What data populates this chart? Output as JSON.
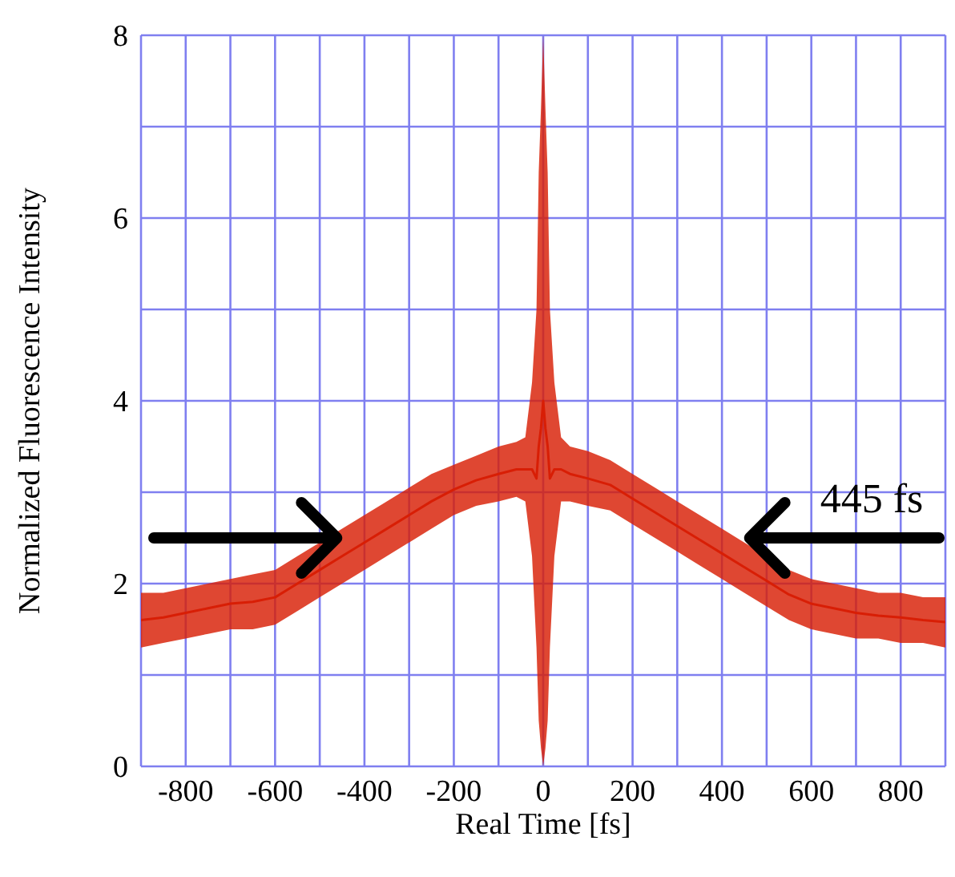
{
  "chart_data": {
    "type": "line",
    "xlabel": "Real Time [fs]",
    "ylabel": "Normalized Fluorescence Intensity",
    "x": [
      -900,
      -850,
      -800,
      -750,
      -700,
      -650,
      -600,
      -550,
      -500,
      -450,
      -400,
      -350,
      -300,
      -250,
      -200,
      -150,
      -100,
      -60,
      -40,
      -25,
      -15,
      -10,
      -5,
      0,
      5,
      10,
      15,
      25,
      40,
      60,
      100,
      150,
      200,
      250,
      300,
      350,
      400,
      450,
      500,
      550,
      600,
      650,
      700,
      750,
      800,
      850,
      900
    ],
    "series": [
      {
        "color": "#d81e05",
        "values": [
          1.6,
          1.63,
          1.68,
          1.73,
          1.78,
          1.8,
          1.85,
          2.0,
          2.15,
          2.3,
          2.45,
          2.6,
          2.75,
          2.9,
          3.03,
          3.13,
          3.2,
          3.25,
          3.25,
          3.25,
          3.15,
          3.5,
          3.7,
          4,
          3.7,
          3.5,
          3.15,
          3.25,
          3.25,
          3.2,
          3.15,
          3.08,
          2.93,
          2.78,
          2.63,
          2.48,
          2.33,
          2.18,
          2.03,
          1.88,
          1.78,
          1.73,
          1.68,
          1.65,
          1.63,
          1.6,
          1.58
        ],
        "lower": [
          1.3,
          1.35,
          1.4,
          1.45,
          1.5,
          1.5,
          1.55,
          1.7,
          1.85,
          2.0,
          2.15,
          2.3,
          2.45,
          2.6,
          2.75,
          2.85,
          2.9,
          2.95,
          2.9,
          2.3,
          1.3,
          0.5,
          0.2,
          0,
          0.2,
          0.5,
          1.3,
          2.3,
          2.9,
          2.9,
          2.85,
          2.8,
          2.65,
          2.5,
          2.35,
          2.2,
          2.05,
          1.9,
          1.75,
          1.6,
          1.5,
          1.45,
          1.4,
          1.4,
          1.35,
          1.35,
          1.3
        ],
        "upper": [
          1.9,
          1.9,
          1.95,
          2.0,
          2.05,
          2.1,
          2.15,
          2.3,
          2.45,
          2.6,
          2.75,
          2.9,
          3.05,
          3.2,
          3.3,
          3.4,
          3.5,
          3.55,
          3.6,
          4.2,
          5.0,
          6.5,
          7.2,
          8,
          7.2,
          6.5,
          5.0,
          4.2,
          3.6,
          3.5,
          3.45,
          3.35,
          3.2,
          3.05,
          2.9,
          2.75,
          2.6,
          2.45,
          2.3,
          2.15,
          2.05,
          2.0,
          1.95,
          1.9,
          1.9,
          1.85,
          1.85
        ]
      }
    ],
    "xlim": [
      -900,
      900
    ],
    "xticks": [
      {
        "value": -900,
        "label": null
      },
      -800,
      {
        "value": -700,
        "label": null
      },
      -600,
      {
        "value": -500,
        "label": null
      },
      -400,
      {
        "value": -300,
        "label": null
      },
      -200,
      {
        "value": -100,
        "label": null
      },
      0,
      {
        "value": 100,
        "label": null
      },
      200,
      {
        "value": 300,
        "label": null
      },
      400,
      {
        "value": 500,
        "label": null
      },
      600,
      {
        "value": 700,
        "label": null
      },
      800,
      {
        "value": 900,
        "label": null
      }
    ],
    "ylim": [
      0,
      8
    ],
    "yticks": [
      0,
      {
        "value": 1,
        "label": null
      },
      2,
      {
        "value": 3,
        "label": null
      },
      4,
      {
        "value": 5,
        "label": null
      },
      6,
      {
        "value": 7,
        "label": null
      },
      8
    ],
    "grid": true,
    "annotations": [
      {
        "text": "445 fs",
        "x": 462,
        "y": 2.5
      }
    ]
  }
}
